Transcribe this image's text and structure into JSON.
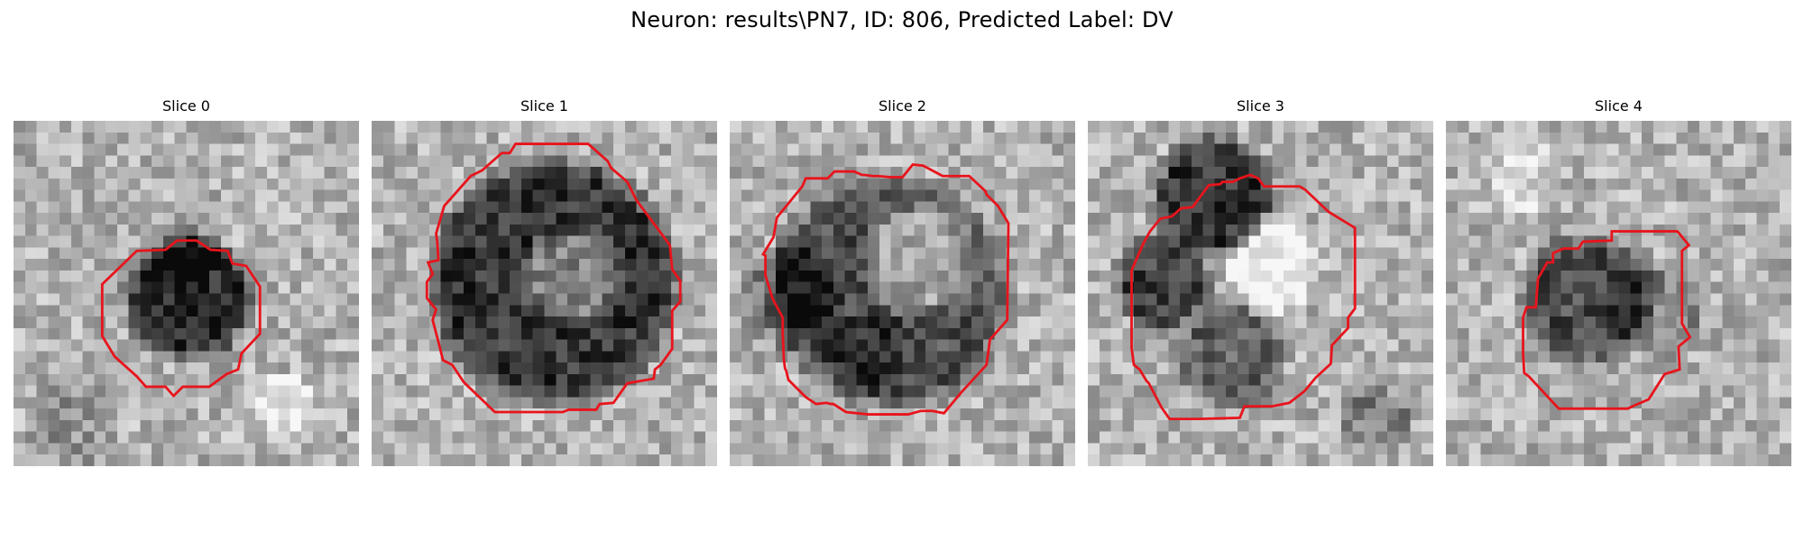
{
  "figure": {
    "title": "Neuron: results\\PN7, ID: 806, Predicted Label: DV"
  },
  "panels": [
    {
      "title": "Slice 0"
    },
    {
      "title": "Slice 1"
    },
    {
      "title": "Slice 2"
    },
    {
      "title": "Slice 3"
    },
    {
      "title": "Slice 4"
    }
  ],
  "colors": {
    "contour": "#e8141c",
    "colormap": "grayscale"
  }
}
